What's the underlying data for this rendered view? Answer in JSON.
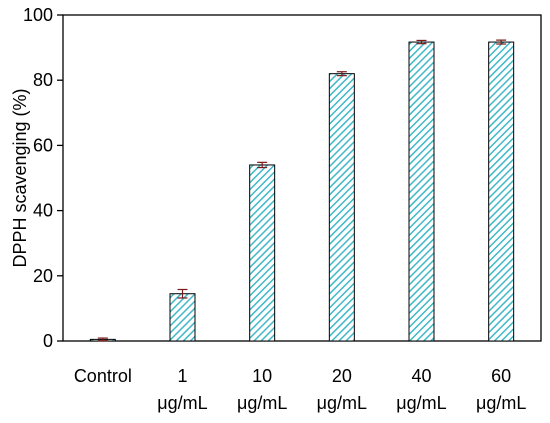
{
  "chart_data": {
    "type": "bar",
    "title": "",
    "xlabel": "",
    "ylabel": "DPPH scavenging (%)",
    "ylim": [
      0,
      100
    ],
    "yticks": [
      0,
      20,
      40,
      60,
      80,
      100
    ],
    "categories": [
      {
        "line1": "Control",
        "line2": ""
      },
      {
        "line1": "1",
        "line2": "μg/mL"
      },
      {
        "line1": "10",
        "line2": "μg/mL"
      },
      {
        "line1": "20",
        "line2": "μg/mL"
      },
      {
        "line1": "40",
        "line2": "μg/mL"
      },
      {
        "line1": "60",
        "line2": "μg/mL"
      }
    ],
    "values": [
      0.5,
      14.5,
      54,
      82,
      91.7,
      91.7
    ],
    "errors": [
      0.4,
      1.3,
      0.8,
      0.6,
      0.5,
      0.6
    ],
    "grid": false,
    "legend": "none",
    "bar_pattern": "diagonal-hatch",
    "colors": {
      "bar_fill": "#3fb8c8",
      "bar_background": "#ffffff",
      "axis": "#000000",
      "error_bar": "#7a1a1a"
    }
  }
}
